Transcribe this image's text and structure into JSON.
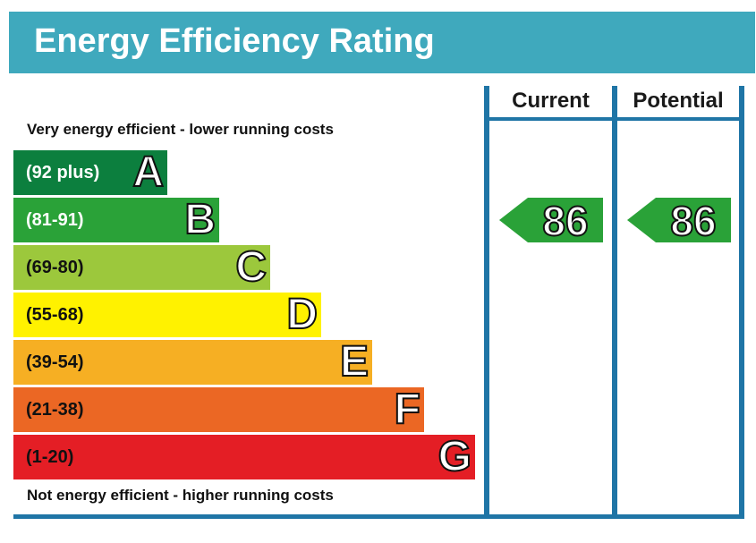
{
  "title": "Energy Efficiency Rating",
  "columns": {
    "current": "Current",
    "potential": "Potential"
  },
  "captions": {
    "top": "Very energy efficient - lower running costs",
    "bottom": "Not energy efficient - higher running costs"
  },
  "chart_data": {
    "type": "bar",
    "title": "Energy Efficiency Rating",
    "bands": [
      {
        "range": "(92 plus)",
        "letter": "A",
        "min": 92,
        "max": 100,
        "color": "#0c7f3e"
      },
      {
        "range": "(81-91)",
        "letter": "B",
        "min": 81,
        "max": 91,
        "color": "#2aa238"
      },
      {
        "range": "(69-80)",
        "letter": "C",
        "min": 69,
        "max": 80,
        "color": "#9cc83c"
      },
      {
        "range": "(55-68)",
        "letter": "D",
        "min": 55,
        "max": 68,
        "color": "#fff200"
      },
      {
        "range": "(39-54)",
        "letter": "E",
        "min": 39,
        "max": 54,
        "color": "#f6af23"
      },
      {
        "range": "(21-38)",
        "letter": "F",
        "min": 21,
        "max": 38,
        "color": "#eb6724"
      },
      {
        "range": "(1-20)",
        "letter": "G",
        "min": 1,
        "max": 20,
        "color": "#e41e25"
      }
    ],
    "ratings": {
      "current": {
        "value": 86,
        "band": "B",
        "color": "#2aa238"
      },
      "potential": {
        "value": 86,
        "band": "B",
        "color": "#2aa238"
      }
    }
  },
  "colors": {
    "header": "#3fa9bd",
    "frame": "#1f75a6",
    "text": "#111111"
  }
}
